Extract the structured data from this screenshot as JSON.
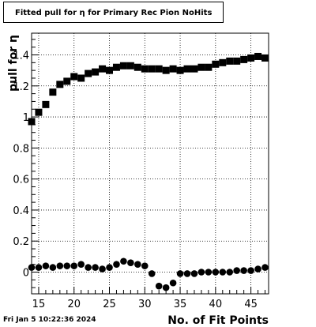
{
  "title": "Fitted pull for  η for Primary Rec Pion NoHits",
  "footer": {
    "timestamp": "Fri Jan  5 10:22:36 2024"
  },
  "chart_data": [
    {
      "type": "scatter",
      "xlabel": "No. of Fit Points",
      "ylabel": "pull for  η",
      "xlim": [
        14,
        47.5
      ],
      "ylim": [
        -0.14,
        1.54
      ],
      "x_ticks": [
        15,
        20,
        25,
        30,
        35,
        40,
        45
      ],
      "x_tick_labels": [
        "15",
        "20",
        "25",
        "30",
        "35",
        "40",
        "45"
      ],
      "y_ticks": [
        0,
        0.2,
        0.4,
        0.6,
        0.8,
        1.0,
        1.2,
        1.4
      ],
      "y_tick_labels": [
        "0",
        "0.2",
        "0.4",
        "0.6",
        "0.8",
        "1",
        "1.2",
        "1.4"
      ],
      "grid": true,
      "series": [
        {
          "marker": "square",
          "color": "#000000",
          "x": [
            14,
            15,
            16,
            17,
            18,
            19,
            20,
            21,
            22,
            23,
            24,
            25,
            26,
            27,
            28,
            29,
            30,
            31,
            32,
            33,
            34,
            35,
            36,
            37,
            38,
            39,
            40,
            41,
            42,
            43,
            44,
            45,
            46,
            47
          ],
          "values": [
            0.97,
            1.03,
            1.08,
            1.16,
            1.21,
            1.23,
            1.26,
            1.25,
            1.28,
            1.29,
            1.31,
            1.3,
            1.32,
            1.33,
            1.33,
            1.32,
            1.31,
            1.31,
            1.31,
            1.3,
            1.31,
            1.3,
            1.31,
            1.31,
            1.32,
            1.32,
            1.34,
            1.35,
            1.36,
            1.36,
            1.37,
            1.38,
            1.39,
            1.38
          ]
        },
        {
          "marker": "circle",
          "color": "#000000",
          "x": [
            14,
            15,
            16,
            17,
            18,
            19,
            20,
            21,
            22,
            23,
            24,
            25,
            26,
            27,
            28,
            29,
            30,
            31,
            32,
            33,
            34,
            35,
            36,
            37,
            38,
            39,
            40,
            41,
            42,
            43,
            44,
            45,
            46,
            47
          ],
          "values": [
            0.03,
            0.03,
            0.04,
            0.03,
            0.04,
            0.04,
            0.04,
            0.05,
            0.03,
            0.03,
            0.02,
            0.03,
            0.05,
            0.07,
            0.06,
            0.05,
            0.04,
            -0.01,
            -0.09,
            -0.1,
            -0.07,
            -0.01,
            -0.01,
            -0.01,
            0.0,
            0.0,
            0.0,
            0.0,
            0.0,
            0.01,
            0.01,
            0.01,
            0.02,
            0.03
          ]
        }
      ]
    }
  ]
}
